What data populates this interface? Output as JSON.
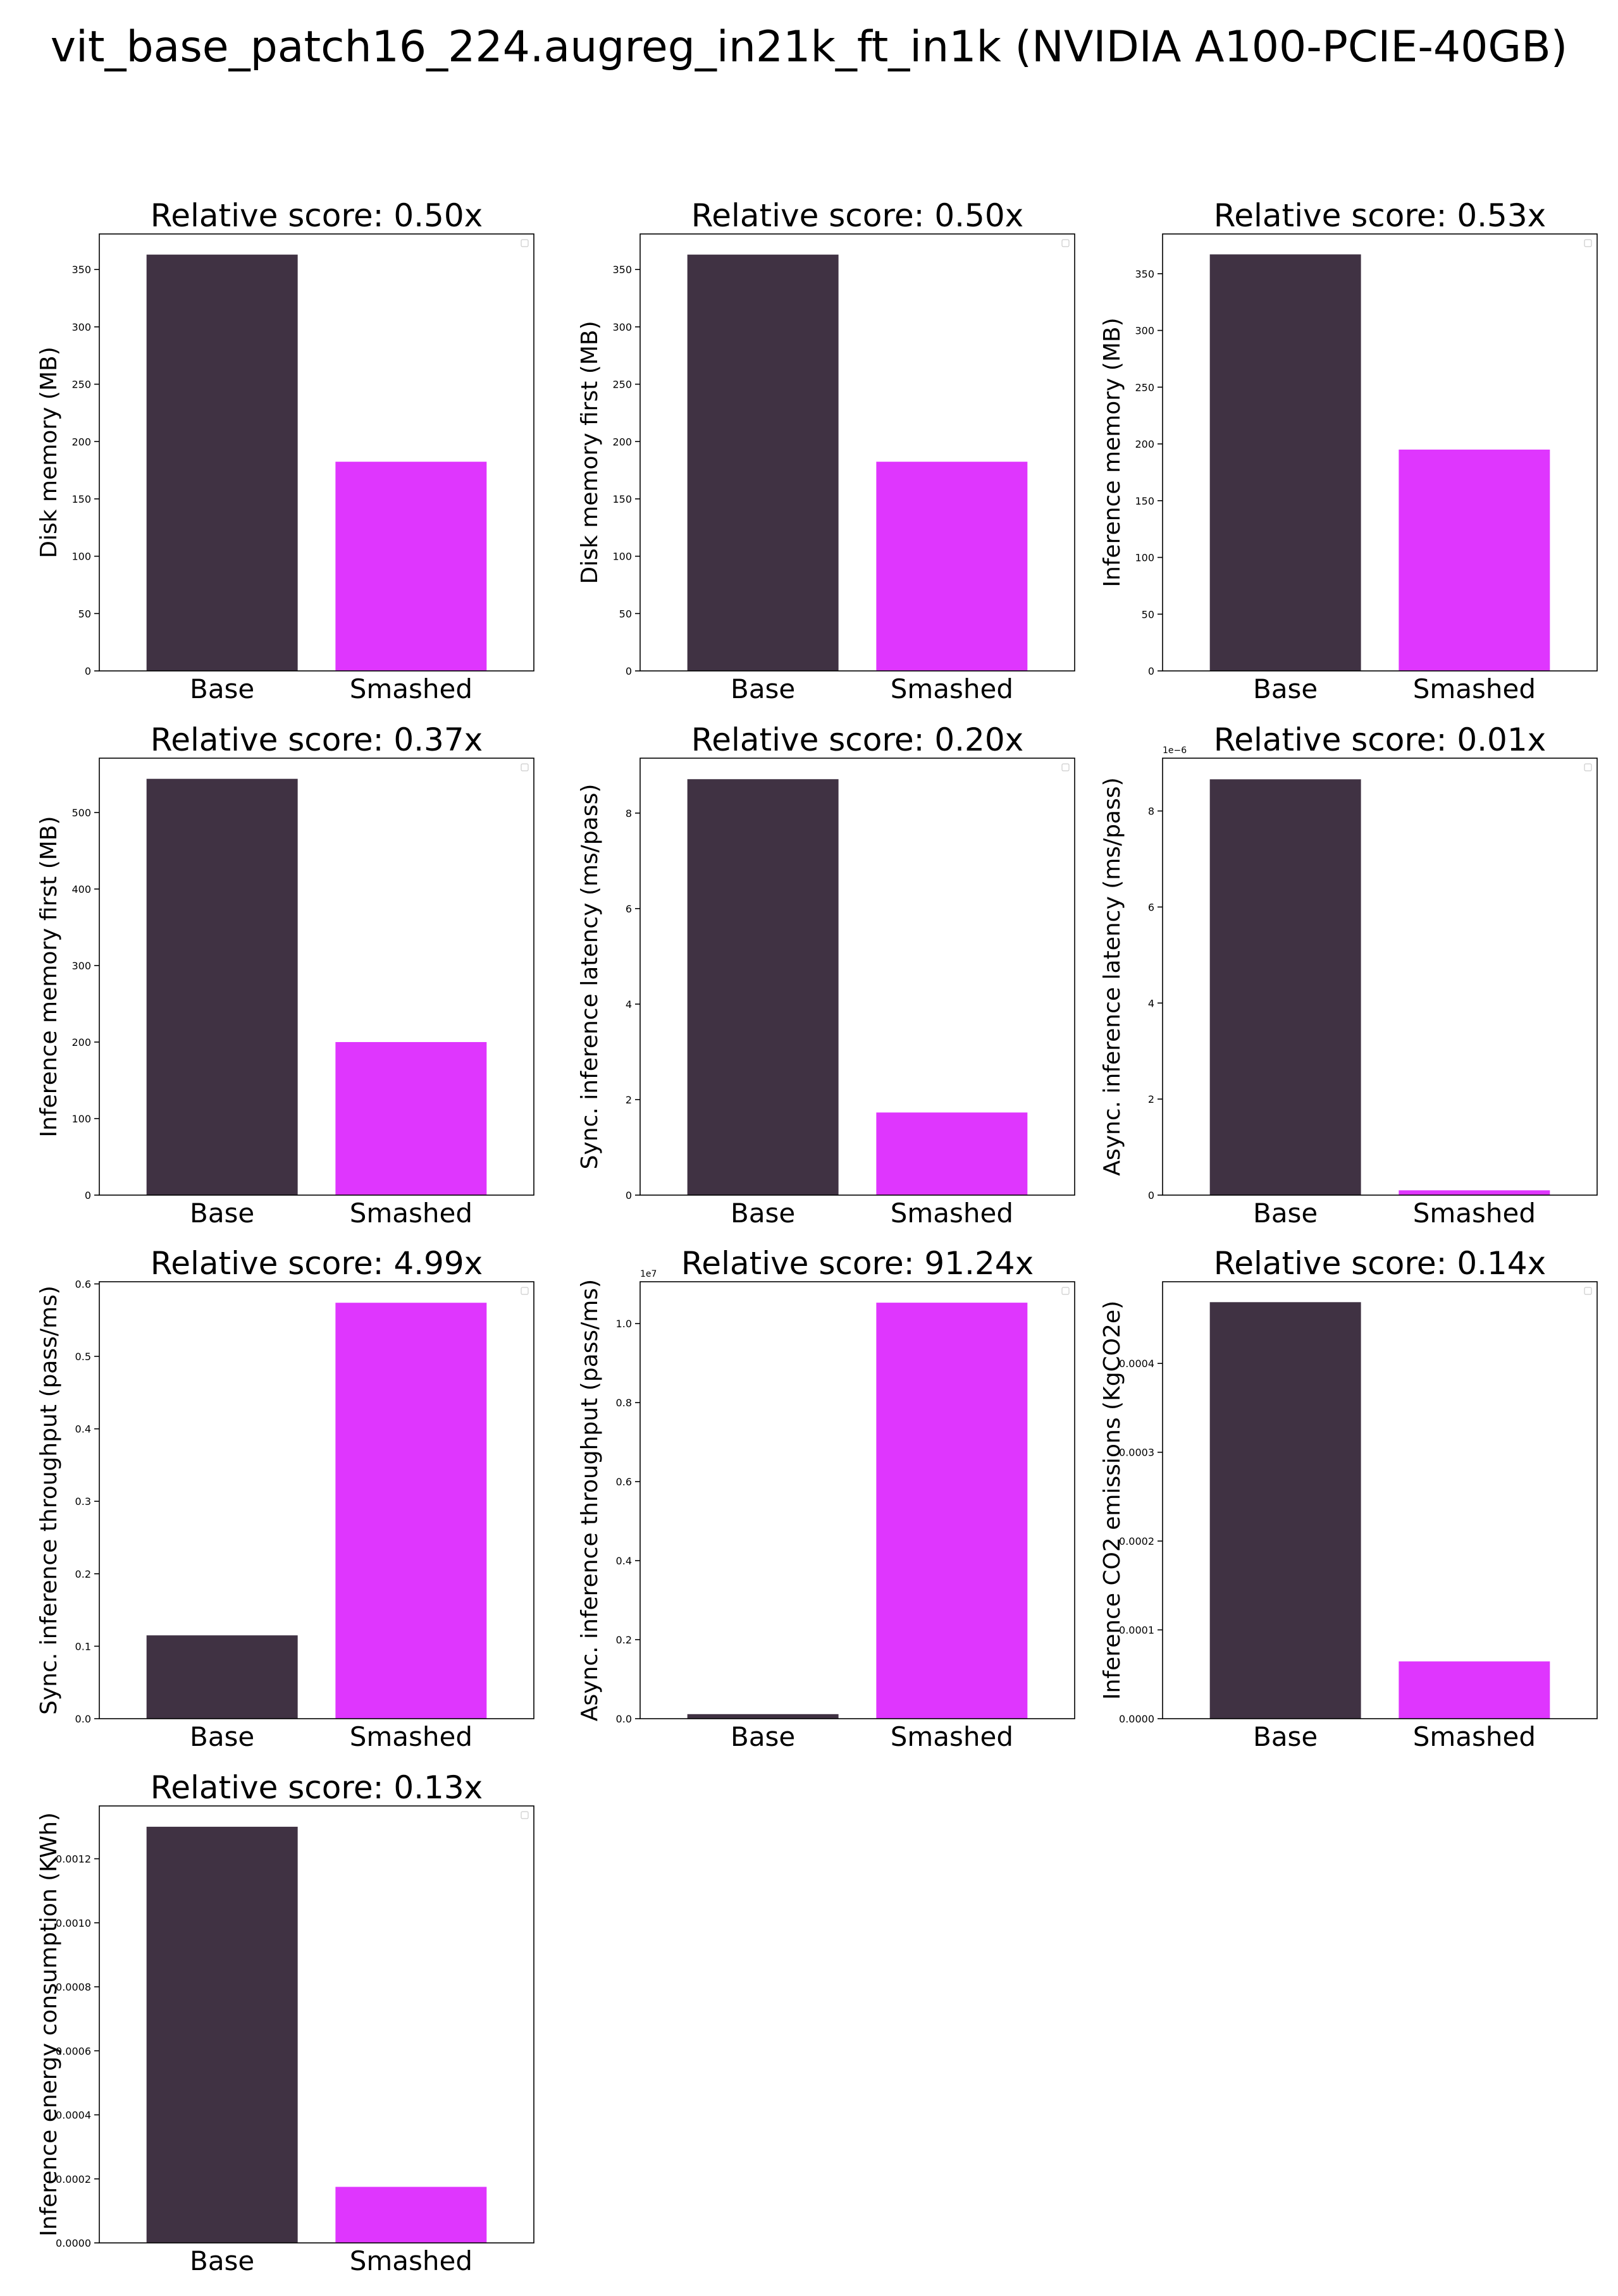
{
  "title": "vit_base_patch16_224.augreg_in21k_ft_in1k (NVIDIA A100-PCIE-40GB)",
  "colors": {
    "base": "#403243",
    "smashed": "#df36fe"
  },
  "chart_data": [
    {
      "type": "bar",
      "title": "Relative score: 0.50x",
      "ylabel": "Disk memory (MB)",
      "categories": [
        "Base",
        "Smashed"
      ],
      "values": [
        363.0,
        182.4
      ],
      "ylim": [
        0,
        381
      ],
      "yticks": [
        0,
        50,
        100,
        150,
        200,
        250,
        300,
        350
      ],
      "ytick_labels": [
        "0",
        "50",
        "100",
        "150",
        "200",
        "250",
        "300",
        "350"
      ],
      "offset_text": ""
    },
    {
      "type": "bar",
      "title": "Relative score: 0.50x",
      "ylabel": "Disk memory first (MB)",
      "categories": [
        "Base",
        "Smashed"
      ],
      "values": [
        363.0,
        182.4
      ],
      "ylim": [
        0,
        381
      ],
      "yticks": [
        0,
        50,
        100,
        150,
        200,
        250,
        300,
        350
      ],
      "ytick_labels": [
        "0",
        "50",
        "100",
        "150",
        "200",
        "250",
        "300",
        "350"
      ],
      "offset_text": ""
    },
    {
      "type": "bar",
      "title": "Relative score: 0.53x",
      "ylabel": "Inference memory (MB)",
      "categories": [
        "Base",
        "Smashed"
      ],
      "values": [
        367.0,
        195.0
      ],
      "ylim": [
        0,
        385
      ],
      "yticks": [
        0,
        50,
        100,
        150,
        200,
        250,
        300,
        350
      ],
      "ytick_labels": [
        "0",
        "50",
        "100",
        "150",
        "200",
        "250",
        "300",
        "350"
      ],
      "offset_text": ""
    },
    {
      "type": "bar",
      "title": "Relative score: 0.37x",
      "ylabel": "Inference memory first (MB)",
      "categories": [
        "Base",
        "Smashed"
      ],
      "values": [
        544.0,
        200.0
      ],
      "ylim": [
        0,
        571
      ],
      "yticks": [
        0,
        100,
        200,
        300,
        400,
        500
      ],
      "ytick_labels": [
        "0",
        "100",
        "200",
        "300",
        "400",
        "500"
      ],
      "offset_text": ""
    },
    {
      "type": "bar",
      "title": "Relative score: 0.20x",
      "ylabel": "Sync. inference latency (ms/pass)",
      "categories": [
        "Base",
        "Smashed"
      ],
      "values": [
        8.71,
        1.73
      ],
      "ylim": [
        0,
        9.15
      ],
      "yticks": [
        0,
        2,
        4,
        6,
        8
      ],
      "ytick_labels": [
        "0",
        "2",
        "4",
        "6",
        "8"
      ],
      "offset_text": ""
    },
    {
      "type": "bar",
      "title": "Relative score: 0.01x",
      "ylabel": "Async. inference latency (ms/pass)",
      "categories": [
        "Base",
        "Smashed"
      ],
      "values": [
        8.66e-06,
        1e-07
      ],
      "ylim": [
        0,
        9.1e-06
      ],
      "yticks": [
        0,
        2e-06,
        4e-06,
        6e-06,
        8e-06
      ],
      "ytick_labels": [
        "0",
        "2",
        "4",
        "6",
        "8"
      ],
      "offset_text": "1e−6"
    },
    {
      "type": "bar",
      "title": "Relative score: 4.99x",
      "ylabel": "Sync. inference throughput (pass/ms)",
      "categories": [
        "Base",
        "Smashed"
      ],
      "values": [
        0.115,
        0.574
      ],
      "ylim": [
        0,
        0.603
      ],
      "yticks": [
        0,
        0.1,
        0.2,
        0.3,
        0.4,
        0.5,
        0.6
      ],
      "ytick_labels": [
        "0.0",
        "0.1",
        "0.2",
        "0.3",
        "0.4",
        "0.5",
        "0.6"
      ],
      "offset_text": ""
    },
    {
      "type": "bar",
      "title": "Relative score: 91.24x",
      "ylabel": "Async. inference throughput (pass/ms)",
      "categories": [
        "Base",
        "Smashed"
      ],
      "values": [
        115000,
        10530000
      ],
      "ylim": [
        0,
        11060000
      ],
      "yticks": [
        0,
        2000000,
        4000000,
        6000000,
        8000000,
        10000000
      ],
      "ytick_labels": [
        "0.0",
        "0.2",
        "0.4",
        "0.6",
        "0.8",
        "1.0"
      ],
      "offset_text": "1e7"
    },
    {
      "type": "bar",
      "title": "Relative score: 0.14x",
      "ylabel": "Inference CO2 emissions (KgCO2e)",
      "categories": [
        "Base",
        "Smashed"
      ],
      "values": [
        0.000469,
        6.45e-05
      ],
      "ylim": [
        0,
        0.000492
      ],
      "yticks": [
        0,
        0.0001,
        0.0002,
        0.0003,
        0.0004
      ],
      "ytick_labels": [
        "0.0000",
        "0.0001",
        "0.0002",
        "0.0003",
        "0.0004"
      ],
      "offset_text": ""
    },
    {
      "type": "bar",
      "title": "Relative score: 0.13x",
      "ylabel": "Inference energy consumption (KWh)",
      "categories": [
        "Base",
        "Smashed"
      ],
      "values": [
        0.0013,
        0.000175
      ],
      "ylim": [
        0,
        0.001365
      ],
      "yticks": [
        0,
        0.0002,
        0.0004,
        0.0006,
        0.0008,
        0.001,
        0.0012
      ],
      "ytick_labels": [
        "0.0000",
        "0.0002",
        "0.0004",
        "0.0006",
        "0.0008",
        "0.0010",
        "0.0012"
      ],
      "offset_text": ""
    }
  ]
}
